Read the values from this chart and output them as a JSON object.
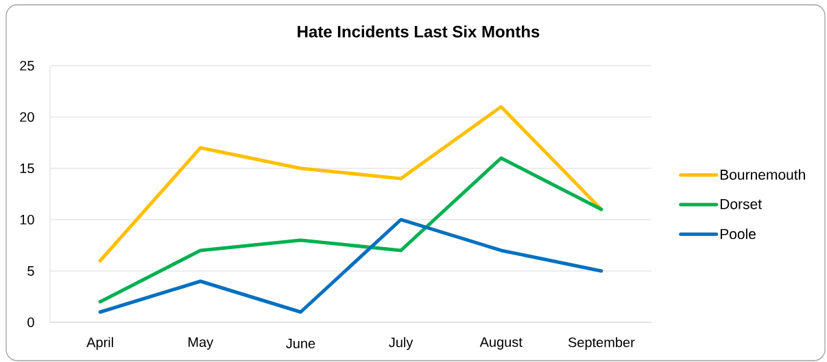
{
  "chart_data": {
    "type": "line",
    "title": "Hate Incidents Last Six Months",
    "categories": [
      "April",
      "May",
      "June",
      "July",
      "August",
      "September"
    ],
    "series": [
      {
        "name": "Bournemouth",
        "color": "#ffc000",
        "values": [
          6,
          17,
          15,
          14,
          21,
          11
        ]
      },
      {
        "name": "Dorset",
        "color": "#00b050",
        "values": [
          2,
          7,
          8,
          7,
          16,
          11
        ]
      },
      {
        "name": "Poole",
        "color": "#0070c0",
        "values": [
          1,
          4,
          1,
          10,
          7,
          5
        ]
      }
    ],
    "ylim": [
      0,
      25
    ],
    "yticks": [
      0,
      5,
      10,
      15,
      20,
      25
    ],
    "grid": "y",
    "legend": "right",
    "line_style": "solid"
  }
}
